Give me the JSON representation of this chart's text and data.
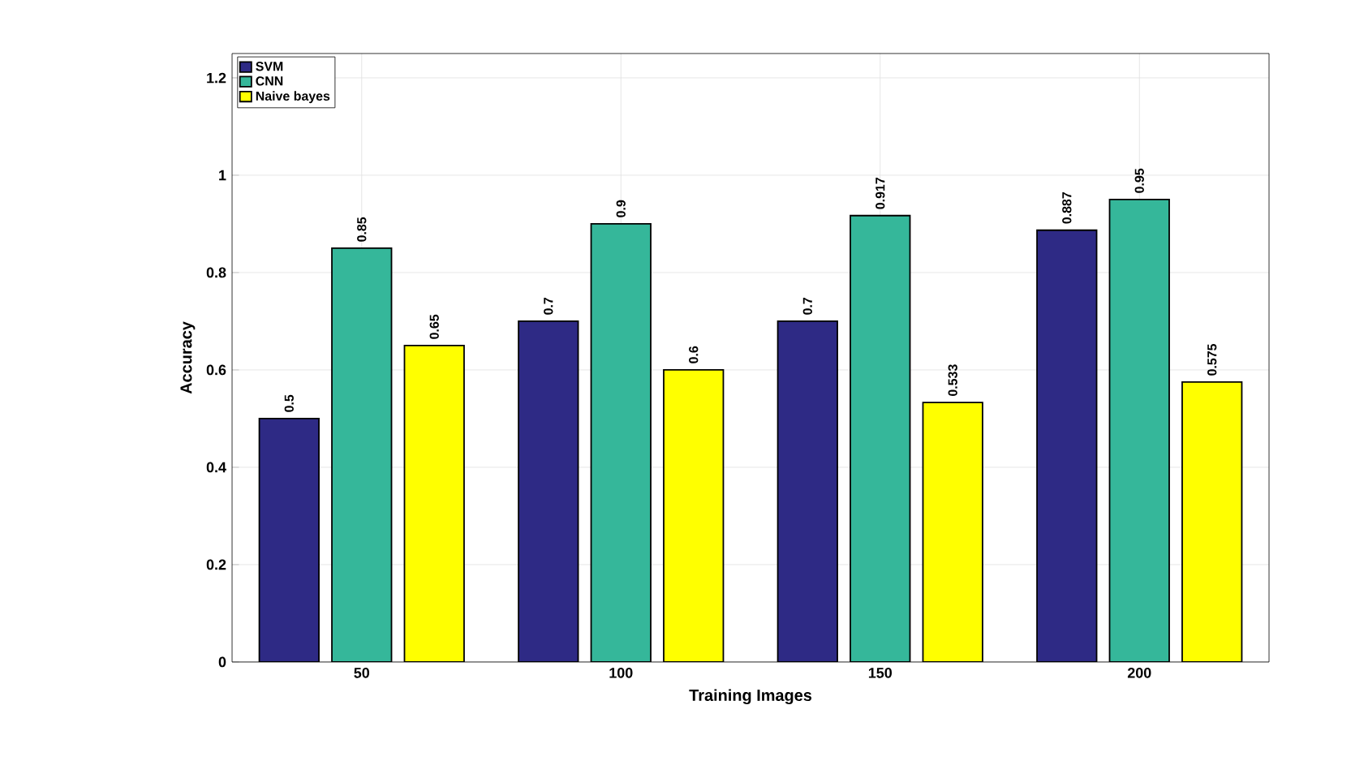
{
  "chart_data": {
    "type": "bar",
    "xlabel": "Training Images",
    "ylabel": "Accuracy",
    "categories": [
      "50",
      "100",
      "150",
      "200"
    ],
    "series": [
      {
        "name": "SVM",
        "color": "#2e2a85",
        "values": [
          0.5,
          0.7,
          0.7,
          0.887
        ]
      },
      {
        "name": "CNN",
        "color": "#35b79a",
        "values": [
          0.85,
          0.9,
          0.917,
          0.95
        ]
      },
      {
        "name": "Naive bayes",
        "color": "#ffff00",
        "values": [
          0.65,
          0.6,
          0.533,
          0.575
        ]
      }
    ],
    "ylim": [
      0,
      1.25
    ],
    "yticks": [
      0,
      0.2,
      0.4,
      0.6,
      0.8,
      1,
      1.2
    ],
    "grid": true,
    "legend": "top left",
    "data_labels": true
  }
}
